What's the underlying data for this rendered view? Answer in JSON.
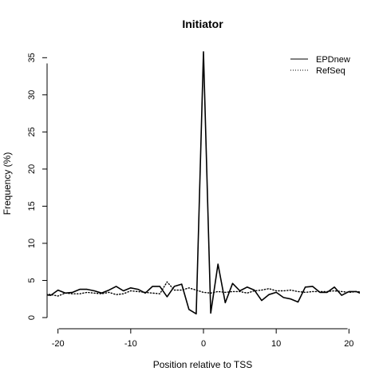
{
  "chart_data": {
    "type": "line",
    "title": "Initiator",
    "xlabel": "Position relative to TSS",
    "ylabel": "Frequency (%)",
    "xlim": [
      -21.5,
      21.5
    ],
    "ylim": [
      0,
      36
    ],
    "xticks": [
      -20,
      -10,
      0,
      10,
      20
    ],
    "xtick_labels": [
      "-20",
      "-10",
      "0",
      "10",
      "20"
    ],
    "yticks": [
      0,
      5,
      10,
      15,
      20,
      25,
      30,
      35
    ],
    "ytick_labels": [
      "0",
      "5",
      "10",
      "15",
      "20",
      "25",
      "30",
      "35"
    ],
    "grid": false,
    "legend": "top-right",
    "x": [
      -22,
      -21,
      -20,
      -19,
      -18,
      -17,
      -16,
      -15,
      -14,
      -13,
      -12,
      -11,
      -10,
      -9,
      -8,
      -7,
      -6,
      -5,
      -4,
      -3,
      -2,
      -1,
      0,
      1,
      2,
      3,
      4,
      5,
      6,
      7,
      8,
      9,
      10,
      11,
      12,
      13,
      14,
      15,
      16,
      17,
      18,
      19,
      20,
      21,
      22
    ],
    "series": [
      {
        "name": "EPDnew",
        "style": "solid",
        "values": [
          3.1,
          3.0,
          3.7,
          3.3,
          3.4,
          3.8,
          3.8,
          3.6,
          3.3,
          3.7,
          4.2,
          3.6,
          4.0,
          3.8,
          3.3,
          4.2,
          4.2,
          2.8,
          4.2,
          4.5,
          1.1,
          0.5,
          35.8,
          0.6,
          7.2,
          2.0,
          4.6,
          3.6,
          4.1,
          3.7,
          2.3,
          3.1,
          3.4,
          2.7,
          2.5,
          2.1,
          4.1,
          4.2,
          3.4,
          3.4,
          4.1,
          3.0,
          3.5,
          3.5,
          3.1
        ]
      },
      {
        "name": "RefSeq",
        "style": "dotted",
        "values": [
          3.2,
          3.1,
          2.9,
          3.3,
          3.2,
          3.2,
          3.4,
          3.3,
          3.2,
          3.4,
          3.1,
          3.2,
          3.6,
          3.5,
          3.4,
          3.3,
          3.2,
          4.8,
          3.7,
          3.7,
          4.0,
          3.7,
          3.4,
          3.3,
          3.5,
          3.4,
          3.5,
          3.5,
          3.3,
          3.6,
          3.7,
          3.9,
          3.6,
          3.6,
          3.7,
          3.5,
          3.4,
          3.5,
          3.5,
          3.5,
          3.6,
          3.5,
          3.4,
          3.5,
          3.4
        ]
      }
    ]
  }
}
